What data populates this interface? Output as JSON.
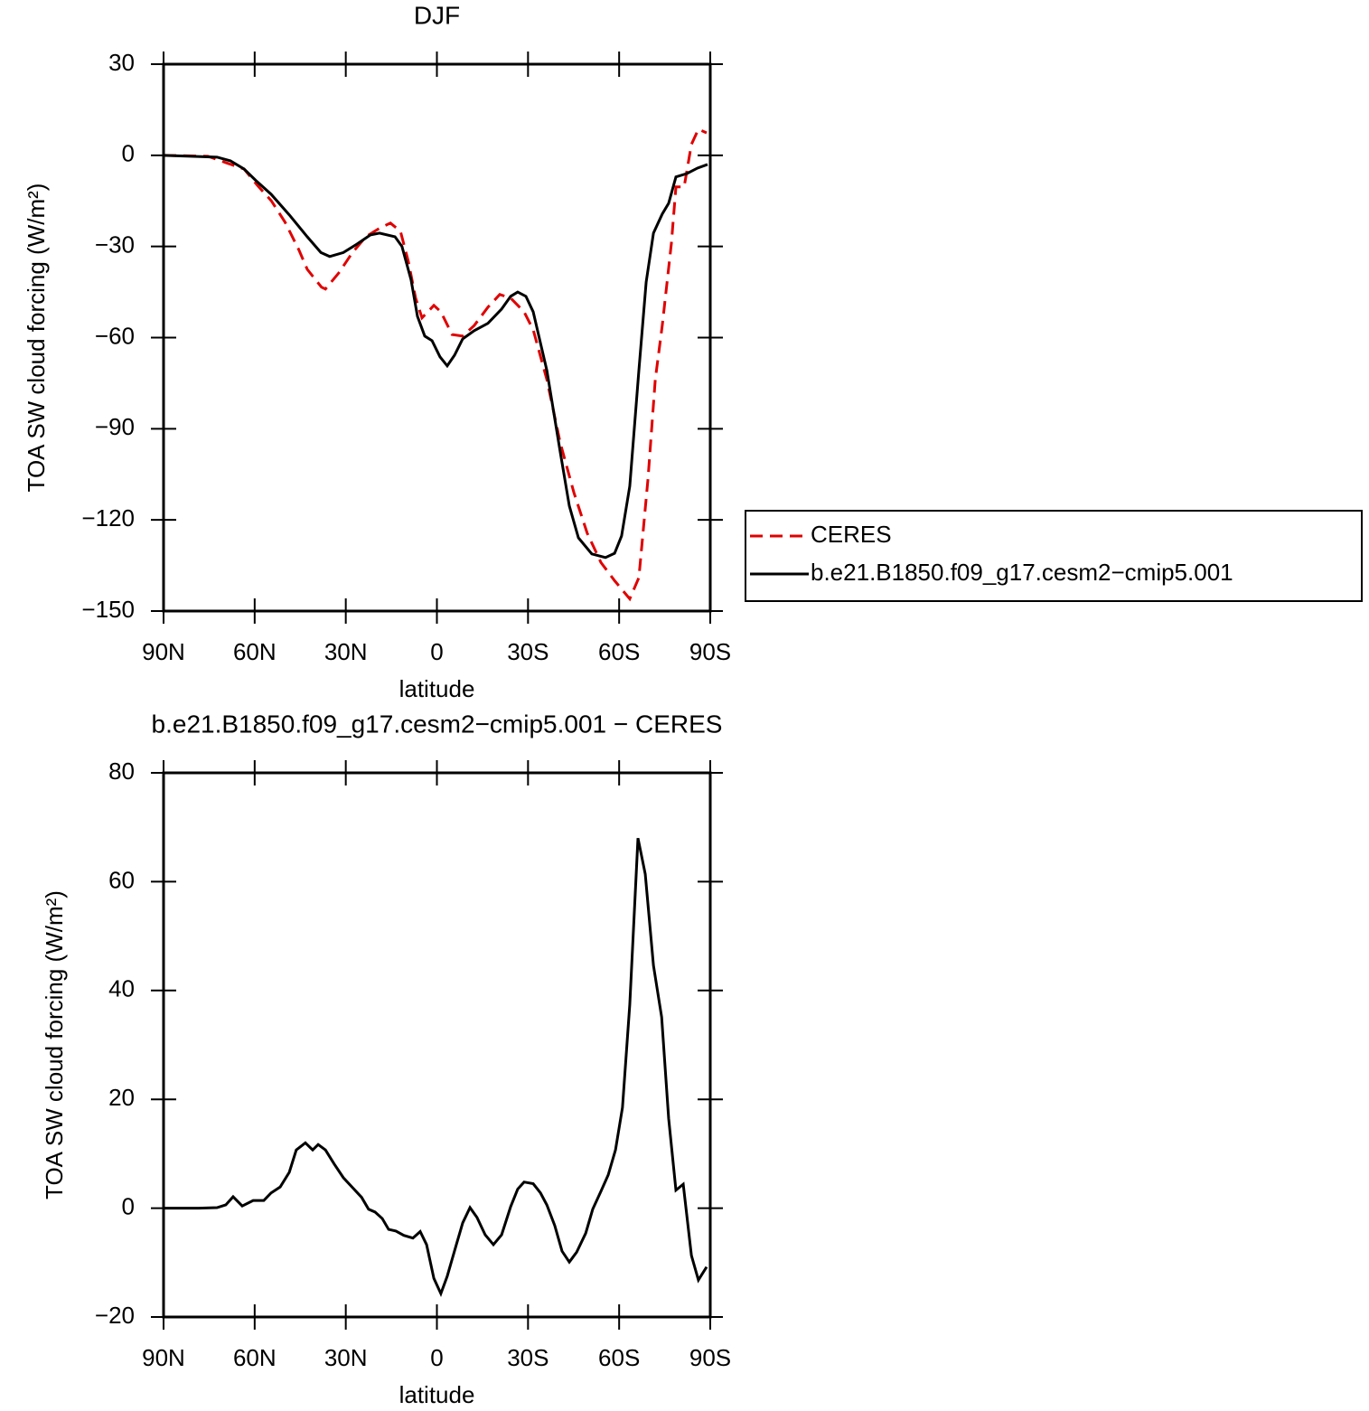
{
  "chart_data": [
    {
      "type": "line",
      "title": "DJF",
      "xlabel": "latitude",
      "ylabel": "TOA SW cloud forcing (W/m²)",
      "xlim": [
        90,
        -90
      ],
      "xticks": [
        {
          "value": 90,
          "label": "90N"
        },
        {
          "value": 60,
          "label": "60N"
        },
        {
          "value": 30,
          "label": "30N"
        },
        0,
        {
          "value": -30,
          "label": "30S"
        },
        {
          "value": -60,
          "label": "60S"
        },
        {
          "value": -90,
          "label": "90S"
        }
      ],
      "ylim": [
        -150,
        30
      ],
      "yticks": [
        {
          "value": -150,
          "label": "−150"
        },
        {
          "value": -120,
          "label": "−120"
        },
        {
          "value": -90,
          "label": "−90"
        },
        {
          "value": -60,
          "label": "−60"
        },
        {
          "value": -30,
          "label": "−30"
        },
        0,
        30
      ],
      "legend": "right",
      "series": [
        {
          "name": "CERES",
          "color": "#e00000",
          "linestyle": "dashed",
          "x": [
            90,
            75.4,
            69.5,
            63.5,
            59,
            54.5,
            50,
            45.5,
            42.7,
            38,
            36.7,
            32.3,
            27.8,
            23.4,
            18.9,
            15.3,
            12,
            9.4,
            7,
            4.9,
            1,
            -1.3,
            -5,
            -8.5,
            -12.3,
            -16.8,
            -20.7,
            -24.3,
            -28.7,
            -31.7,
            -36.2,
            -40.6,
            -45.1,
            -49.5,
            -54,
            -58.5,
            -63.5,
            -66.5,
            -69.5,
            -71.9,
            -74.2,
            -77.2,
            -78.7,
            -81.4,
            -83.8,
            -86.1,
            -88.8
          ],
          "values": [
            0,
            -0.3,
            -2.4,
            -4.5,
            -10,
            -15,
            -22,
            -31,
            -37.5,
            -43.4,
            -44,
            -38.7,
            -32,
            -26.8,
            -24,
            -22.3,
            -25,
            -35,
            -47,
            -53.5,
            -49.4,
            -51.5,
            -59,
            -59.5,
            -56,
            -50,
            -45.8,
            -47,
            -51.5,
            -57.4,
            -73.8,
            -94.6,
            -111,
            -124.4,
            -134,
            -140,
            -146,
            -139,
            -106.5,
            -73.8,
            -56,
            -29,
            -10.4,
            -10.4,
            3.6,
            8.6,
            7.4
          ]
        },
        {
          "name": "b.e21.B1850.f09_g17.cesm2−cmip5.001",
          "color": "#000000",
          "linestyle": "solid",
          "x": [
            90,
            72.4,
            68,
            63.5,
            59.6,
            54.6,
            48.6,
            42.7,
            38.2,
            35.3,
            30.8,
            26.3,
            21.9,
            18.9,
            13.8,
            11.5,
            8.5,
            6.4,
            4,
            1.6,
            -1,
            -3.4,
            -5.8,
            -8.5,
            -12.3,
            -16.8,
            -21.3,
            -24.3,
            -26.6,
            -29.3,
            -31.7,
            -36.2,
            -40.6,
            -43.6,
            -46.6,
            -51,
            -55.5,
            -58.5,
            -60.8,
            -63.5,
            -66.5,
            -68.9,
            -71.3,
            -74.2,
            -76.3,
            -78.7,
            -82.3,
            -85.8,
            -89.1
          ],
          "values": [
            0,
            -0.6,
            -1.8,
            -4.5,
            -8.3,
            -12.8,
            -19.6,
            -26.8,
            -32,
            -33.3,
            -32,
            -29.2,
            -26.2,
            -25.6,
            -26.8,
            -30,
            -41,
            -53,
            -59.5,
            -61,
            -66.3,
            -69.3,
            -65.8,
            -60.4,
            -57.7,
            -55.3,
            -50.6,
            -46.4,
            -45,
            -46.4,
            -51.5,
            -70.8,
            -97.6,
            -115.4,
            -125.9,
            -131.2,
            -132.4,
            -131,
            -125.3,
            -108.9,
            -70.8,
            -41.7,
            -25.6,
            -19.3,
            -15.8,
            -7.1,
            -6,
            -4.2,
            -3
          ]
        }
      ]
    },
    {
      "type": "line",
      "title": "b.e21.B1850.f09_g17.cesm2−cmip5.001 − CERES",
      "xlabel": "latitude",
      "ylabel": "TOA SW cloud forcing (W/m²)",
      "xlim": [
        90,
        -90
      ],
      "xticks": [
        {
          "value": 90,
          "label": "90N"
        },
        {
          "value": 60,
          "label": "60N"
        },
        {
          "value": 30,
          "label": "30N"
        },
        0,
        {
          "value": -30,
          "label": "30S"
        },
        {
          "value": -60,
          "label": "60S"
        },
        {
          "value": -90,
          "label": "90S"
        }
      ],
      "ylim": [
        -20,
        80
      ],
      "yticks": [
        {
          "value": -20,
          "label": "−20"
        },
        0,
        20,
        40,
        60,
        80
      ],
      "series": [
        {
          "color": "#000000",
          "linestyle": "solid",
          "x": [
            90,
            78.4,
            72.4,
            69.5,
            67.1,
            64.1,
            60.5,
            57,
            54.6,
            51.6,
            48.6,
            46.3,
            43.3,
            40.9,
            39.1,
            36.7,
            33.8,
            30.8,
            27.8,
            24.8,
            22.5,
            20.4,
            18,
            15.9,
            13.5,
            10.9,
            7.9,
            5.5,
            3.4,
            1,
            -1.3,
            -3.4,
            -6.4,
            -8.5,
            -10.9,
            -13.2,
            -15.9,
            -18.6,
            -21.3,
            -24.3,
            -26.6,
            -28.7,
            -31.7,
            -34.1,
            -36.2,
            -38.8,
            -41.2,
            -43.6,
            -46,
            -49,
            -51.3,
            -54,
            -56.4,
            -58.8,
            -61.1,
            -63.5,
            -66.2,
            -68.6,
            -71.3,
            -74,
            -76.3,
            -78.7,
            -81.1,
            -83.8,
            -86.1,
            -88.8
          ],
          "values": [
            0,
            0,
            0.1,
            0.6,
            2.1,
            0.4,
            1.4,
            1.4,
            2.8,
            3.9,
            6.6,
            10.7,
            12,
            10.7,
            11.7,
            10.7,
            8.1,
            5.6,
            3.8,
            2,
            -0.2,
            -0.7,
            -1.9,
            -3.9,
            -4.2,
            -5,
            -5.5,
            -4.3,
            -6.7,
            -12.9,
            -15.7,
            -12.5,
            -6.7,
            -2.7,
            0.1,
            -1.7,
            -4.9,
            -6.7,
            -4.9,
            0.3,
            3.5,
            4.8,
            4.5,
            2.8,
            0.6,
            -3.2,
            -7.9,
            -9.9,
            -8.1,
            -4.6,
            -0.2,
            3.1,
            6.1,
            10.7,
            18.5,
            37.4,
            68,
            61.4,
            44.6,
            35.1,
            16.5,
            3.3,
            4.4,
            -8.7,
            -13.2,
            -10.8
          ]
        }
      ]
    }
  ]
}
